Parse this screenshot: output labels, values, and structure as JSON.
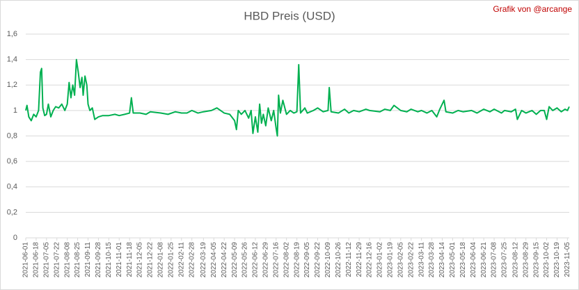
{
  "chart_data": {
    "type": "line",
    "title": "HBD Preis (USD)",
    "annotation": "Grafik von @arcange",
    "color": "#00b050",
    "grid": true,
    "ylim": [
      0,
      1.6
    ],
    "yticks": [
      0,
      {
        "value": 0.2,
        "label": "0,2"
      },
      {
        "value": 0.4,
        "label": "0,4"
      },
      {
        "value": 0.6,
        "label": "0,6"
      },
      {
        "value": 0.8,
        "label": "0,8"
      },
      1,
      {
        "value": 1.2,
        "label": "1,2"
      },
      {
        "value": 1.4,
        "label": "1,4"
      },
      {
        "value": 1.6,
        "label": "1,6"
      }
    ],
    "xlim": [
      "2021-06-01",
      "2023-11-08"
    ],
    "xticks": [
      "2021-06-01",
      "2021-06-18",
      "2021-07-05",
      "2021-07-22",
      "2021-08-08",
      "2021-08-25",
      "2021-09-11",
      "2021-09-28",
      "2021-10-15",
      "2021-11-01",
      "2021-11-18",
      "2021-12-05",
      "2021-12-22",
      "2022-01-08",
      "2022-01-25",
      "2022-02-11",
      "2022-02-28",
      "2022-03-19",
      "2022-04-05",
      "2022-04-22",
      "2022-05-09",
      "2022-05-26",
      "2022-06-12",
      "2022-06-29",
      "2022-07-16",
      "2022-08-02",
      "2022-08-19",
      "2022-09-05",
      "2022-09-22",
      "2022-10-09",
      "2022-10-26",
      "2022-11-12",
      "2022-11-29",
      "2022-12-16",
      "2023-01-02",
      "2023-01-19",
      "2023-02-05",
      "2023-02-22",
      "2023-03-11",
      "2023-03-28",
      "2023-04-14",
      "2023-05-01",
      "2023-05-18",
      "2023-06-04",
      "2023-06-21",
      "2023-07-08",
      "2023-07-25",
      "2023-08-12",
      "2023-08-29",
      "2023-09-15",
      "2023-10-02",
      "2023-10-19",
      "2023-11-05"
    ],
    "x": [
      "2021-06-01",
      "2021-06-03",
      "2021-06-06",
      "2021-06-10",
      "2021-06-14",
      "2021-06-18",
      "2021-06-22",
      "2021-06-25",
      "2021-06-27",
      "2021-06-29",
      "2021-07-02",
      "2021-07-05",
      "2021-07-08",
      "2021-07-12",
      "2021-07-16",
      "2021-07-20",
      "2021-07-25",
      "2021-07-30",
      "2021-08-04",
      "2021-08-08",
      "2021-08-11",
      "2021-08-14",
      "2021-08-17",
      "2021-08-20",
      "2021-08-23",
      "2021-08-26",
      "2021-08-29",
      "2021-09-01",
      "2021-09-03",
      "2021-09-06",
      "2021-09-09",
      "2021-09-11",
      "2021-09-14",
      "2021-09-18",
      "2021-09-22",
      "2021-09-28",
      "2021-10-05",
      "2021-10-15",
      "2021-10-25",
      "2021-11-01",
      "2021-11-10",
      "2021-11-18",
      "2021-11-21",
      "2021-11-24",
      "2021-12-05",
      "2021-12-15",
      "2021-12-22",
      "2022-01-08",
      "2022-01-20",
      "2022-02-01",
      "2022-02-11",
      "2022-02-20",
      "2022-02-28",
      "2022-03-10",
      "2022-03-19",
      "2022-04-01",
      "2022-04-10",
      "2022-04-22",
      "2022-05-01",
      "2022-05-09",
      "2022-05-12",
      "2022-05-15",
      "2022-05-20",
      "2022-05-26",
      "2022-06-01",
      "2022-06-05",
      "2022-06-08",
      "2022-06-12",
      "2022-06-16",
      "2022-06-19",
      "2022-06-22",
      "2022-06-25",
      "2022-06-29",
      "2022-07-03",
      "2022-07-08",
      "2022-07-12",
      "2022-07-16",
      "2022-07-18",
      "2022-07-20",
      "2022-07-23",
      "2022-07-27",
      "2022-08-02",
      "2022-08-08",
      "2022-08-14",
      "2022-08-19",
      "2022-08-22",
      "2022-08-25",
      "2022-09-01",
      "2022-09-05",
      "2022-09-15",
      "2022-09-22",
      "2022-10-01",
      "2022-10-09",
      "2022-10-11",
      "2022-10-14",
      "2022-10-26",
      "2022-11-05",
      "2022-11-12",
      "2022-11-20",
      "2022-11-29",
      "2022-12-10",
      "2022-12-16",
      "2023-01-02",
      "2023-01-10",
      "2023-01-19",
      "2023-01-25",
      "2023-02-05",
      "2023-02-15",
      "2023-02-22",
      "2023-03-05",
      "2023-03-11",
      "2023-03-20",
      "2023-03-28",
      "2023-04-05",
      "2023-04-10",
      "2023-04-17",
      "2023-04-20",
      "2023-05-01",
      "2023-05-10",
      "2023-05-18",
      "2023-06-01",
      "2023-06-10",
      "2023-06-21",
      "2023-07-01",
      "2023-07-08",
      "2023-07-20",
      "2023-07-25",
      "2023-08-05",
      "2023-08-12",
      "2023-08-15",
      "2023-08-22",
      "2023-08-29",
      "2023-09-08",
      "2023-09-15",
      "2023-09-22",
      "2023-09-28",
      "2023-10-02",
      "2023-10-06",
      "2023-10-12",
      "2023-10-19",
      "2023-10-26",
      "2023-11-01",
      "2023-11-05",
      "2023-11-08"
    ],
    "values": [
      1.0,
      1.04,
      0.95,
      0.92,
      0.97,
      0.95,
      1.0,
      1.3,
      1.33,
      1.02,
      0.96,
      0.97,
      1.05,
      0.95,
      1.0,
      1.03,
      1.02,
      1.05,
      1.0,
      1.05,
      1.22,
      1.1,
      1.2,
      1.12,
      1.4,
      1.3,
      1.18,
      1.26,
      1.12,
      1.27,
      1.2,
      1.05,
      1.0,
      1.02,
      0.93,
      0.95,
      0.96,
      0.96,
      0.97,
      0.96,
      0.97,
      0.98,
      1.1,
      0.98,
      0.98,
      0.97,
      0.99,
      0.98,
      0.97,
      0.99,
      0.98,
      0.98,
      1.0,
      0.98,
      0.99,
      1.0,
      1.02,
      0.98,
      0.97,
      0.92,
      0.85,
      1.0,
      0.97,
      1.0,
      0.94,
      1.0,
      0.82,
      0.95,
      0.83,
      1.05,
      0.9,
      0.97,
      0.88,
      1.02,
      0.92,
      1.0,
      0.86,
      0.8,
      1.12,
      0.98,
      1.08,
      0.97,
      1.0,
      0.98,
      0.99,
      1.36,
      0.98,
      1.02,
      0.98,
      1.0,
      1.02,
      0.99,
      1.0,
      1.18,
      0.99,
      0.98,
      1.01,
      0.98,
      1.0,
      0.99,
      1.01,
      1.0,
      0.99,
      1.01,
      1.0,
      1.04,
      1.0,
      0.99,
      1.01,
      0.99,
      1.0,
      0.98,
      1.0,
      0.95,
      1.01,
      1.08,
      0.99,
      0.98,
      1.0,
      0.99,
      1.0,
      0.98,
      1.01,
      0.99,
      1.01,
      0.98,
      1.0,
      0.99,
      1.01,
      0.93,
      1.0,
      0.98,
      1.0,
      0.97,
      1.0,
      1.0,
      0.93,
      1.03,
      1.0,
      1.02,
      0.99,
      1.01,
      1.0,
      1.03
    ]
  }
}
